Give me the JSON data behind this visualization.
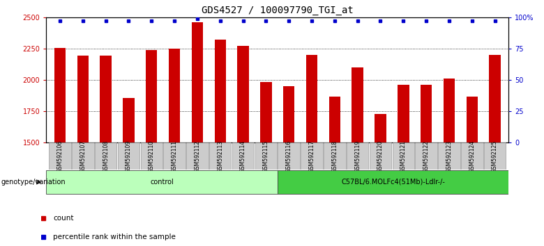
{
  "title": "GDS4527 / 100097790_TGI_at",
  "samples": [
    "GSM592106",
    "GSM592107",
    "GSM592108",
    "GSM592109",
    "GSM592110",
    "GSM592111",
    "GSM592112",
    "GSM592113",
    "GSM592114",
    "GSM592115",
    "GSM592116",
    "GSM592117",
    "GSM592118",
    "GSM592119",
    "GSM592120",
    "GSM592121",
    "GSM592122",
    "GSM592123",
    "GSM592124",
    "GSM592125"
  ],
  "counts": [
    2255,
    2195,
    2195,
    1855,
    2240,
    2250,
    2460,
    2320,
    2270,
    1985,
    1950,
    2200,
    1870,
    2100,
    1730,
    1960,
    1960,
    2010,
    1870,
    2200
  ],
  "percentile_ranks": [
    97,
    97,
    97,
    97,
    97,
    97,
    99,
    97,
    97,
    97,
    97,
    97,
    97,
    97,
    97,
    97,
    97,
    97,
    97,
    97
  ],
  "bar_color": "#cc0000",
  "dot_color": "#0000cc",
  "ylim_left": [
    1500,
    2500
  ],
  "ylim_right": [
    0,
    100
  ],
  "yticks_left": [
    1500,
    1750,
    2000,
    2250,
    2500
  ],
  "yticks_right": [
    0,
    25,
    50,
    75,
    100
  ],
  "ytick_labels_right": [
    "0",
    "25",
    "50",
    "75",
    "100%"
  ],
  "groups": [
    {
      "label": "control",
      "start": 0,
      "end": 10,
      "color": "#bbffbb"
    },
    {
      "label": "C57BL/6.MOLFc4(51Mb)-Ldlr-/-",
      "start": 10,
      "end": 20,
      "color": "#44cc44"
    }
  ],
  "group_label": "genotype/variation",
  "legend_count_label": "count",
  "legend_percentile_label": "percentile rank within the sample",
  "plot_bg": "#ffffff",
  "grid_color": "#000000",
  "title_fontsize": 10,
  "tick_fontsize": 7,
  "bar_width": 0.5,
  "sample_bg_color": "#cccccc"
}
